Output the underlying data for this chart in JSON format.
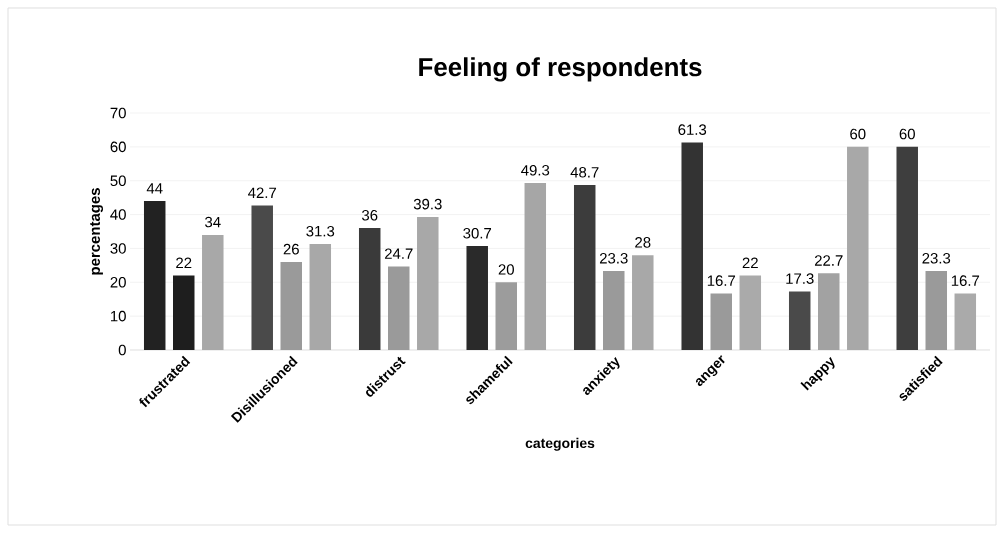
{
  "chart_data": {
    "type": "bar",
    "title": "Feeling of respondents",
    "xlabel": "categories",
    "ylabel": "percentages",
    "categories": [
      "frustrated",
      "Disillusioned",
      "distrust",
      "shameful",
      "anxiety",
      "anger",
      "happy",
      "satisfied"
    ],
    "series": [
      {
        "colors": [
          "#222222",
          "#4a4a4a",
          "#3a3a3a",
          "#2a2a2a",
          "#3c3c3c",
          "#333333",
          "#4a4a4a",
          "#3e3e3e"
        ],
        "values": [
          44,
          42.7,
          36,
          30.7,
          48.7,
          61.3,
          17.3,
          60
        ]
      },
      {
        "colors": [
          "#1e1e1e",
          "#9a9a9a",
          "#9a9a9a",
          "#9c9c9c",
          "#9a9a9a",
          "#9a9a9a",
          "#a2a2a2",
          "#9a9a9a"
        ],
        "values": [
          22,
          26,
          24.7,
          20,
          23.3,
          16.7,
          22.7,
          23.3
        ]
      },
      {
        "colors": [
          "#a8a8a8",
          "#a8a8a8",
          "#a8a8a8",
          "#a6a6a6",
          "#a8a8a8",
          "#aaaaaa",
          "#a8a8a8",
          "#aaaaaa"
        ],
        "values": [
          34,
          31.3,
          39.3,
          49.3,
          28,
          22,
          60,
          16.7
        ]
      }
    ],
    "ylim": [
      0,
      70
    ],
    "yticks": [
      0,
      10,
      20,
      30,
      40,
      50,
      60,
      70
    ],
    "grid": "y",
    "data_labels": true
  }
}
